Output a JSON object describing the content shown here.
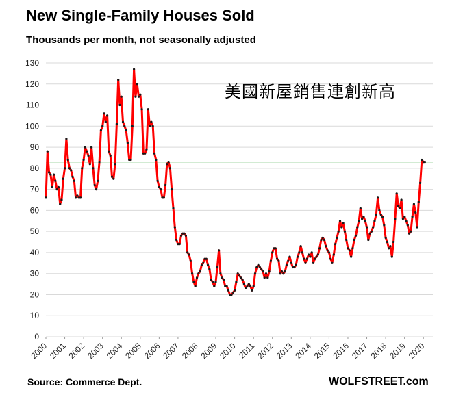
{
  "chart_data": {
    "type": "line",
    "title": "New Single-Family Houses Sold",
    "subtitle": "Thousands per month, not seasonally adjusted",
    "annotation": "美國新屋銷售連創新高",
    "source": "Source: Commerce Dept.",
    "brand": "WOLFSTREET.com",
    "xlabel": "",
    "ylabel": "",
    "ylim": [
      0,
      130
    ],
    "yticks": [
      0,
      10,
      20,
      30,
      40,
      50,
      60,
      70,
      80,
      90,
      100,
      110,
      120,
      130
    ],
    "xticks": [
      "2000",
      "2001",
      "2002",
      "2003",
      "2004",
      "2005",
      "2006",
      "2007",
      "2008",
      "2009",
      "2010",
      "2011",
      "2012",
      "2013",
      "2014",
      "2015",
      "2016",
      "2017",
      "2018",
      "2019",
      "2020"
    ],
    "grid": true,
    "reference_line": 83,
    "colors": {
      "line": "#ff0000",
      "markers": "#1a1a1a",
      "reference": "#4caf50",
      "grid": "#d9d9d9"
    },
    "series": [
      {
        "start": "2000-01",
        "values": [
          66,
          88,
          78,
          77,
          71,
          77,
          74,
          70,
          71,
          63,
          65,
          75,
          80,
          94,
          84,
          80,
          79,
          76,
          74,
          66,
          67,
          66,
          66,
          80,
          84,
          90,
          88,
          86,
          82,
          90,
          80,
          72,
          70,
          74,
          83,
          98,
          100,
          106,
          102,
          105,
          88,
          86,
          76,
          75,
          82,
          101,
          122,
          110,
          114,
          102,
          100,
          98,
          92,
          84,
          84,
          100,
          127,
          114,
          120,
          114,
          115,
          108,
          87,
          87,
          89,
          108,
          100,
          102,
          100,
          87,
          84,
          74,
          71,
          70,
          66,
          66,
          72,
          82,
          83,
          80,
          70,
          61,
          52,
          46,
          44,
          44,
          48,
          49,
          49,
          48,
          40,
          39,
          36,
          30,
          26,
          24,
          28,
          30,
          31,
          34,
          35,
          37,
          37,
          34,
          32,
          27,
          26,
          24,
          26,
          33,
          41,
          30,
          28,
          27,
          24,
          24,
          22,
          20,
          20,
          21,
          22,
          26,
          30,
          29,
          28,
          27,
          25,
          23,
          24,
          25,
          24,
          22,
          24,
          30,
          33,
          34,
          33,
          32,
          31,
          28,
          30,
          28,
          31,
          36,
          40,
          42,
          42,
          37,
          36,
          30,
          31,
          30,
          31,
          34,
          36,
          38,
          35,
          33,
          33,
          34,
          38,
          40,
          43,
          40,
          37,
          35,
          37,
          39,
          38,
          40,
          35,
          37,
          38,
          39,
          42,
          46,
          47,
          46,
          43,
          41,
          40,
          37,
          35,
          39,
          44,
          47,
          50,
          55,
          52,
          54,
          50,
          46,
          42,
          41,
          38,
          42,
          46,
          48,
          52,
          55,
          61,
          56,
          57,
          55,
          52,
          46,
          49,
          50,
          52,
          55,
          58,
          66,
          60,
          58,
          57,
          53,
          47,
          45,
          42,
          43,
          38,
          45,
          56,
          68,
          62,
          61,
          65,
          56,
          57,
          55,
          53,
          49,
          50,
          57,
          63,
          59,
          52,
          64,
          73,
          84,
          83,
          83
        ]
      }
    ]
  }
}
